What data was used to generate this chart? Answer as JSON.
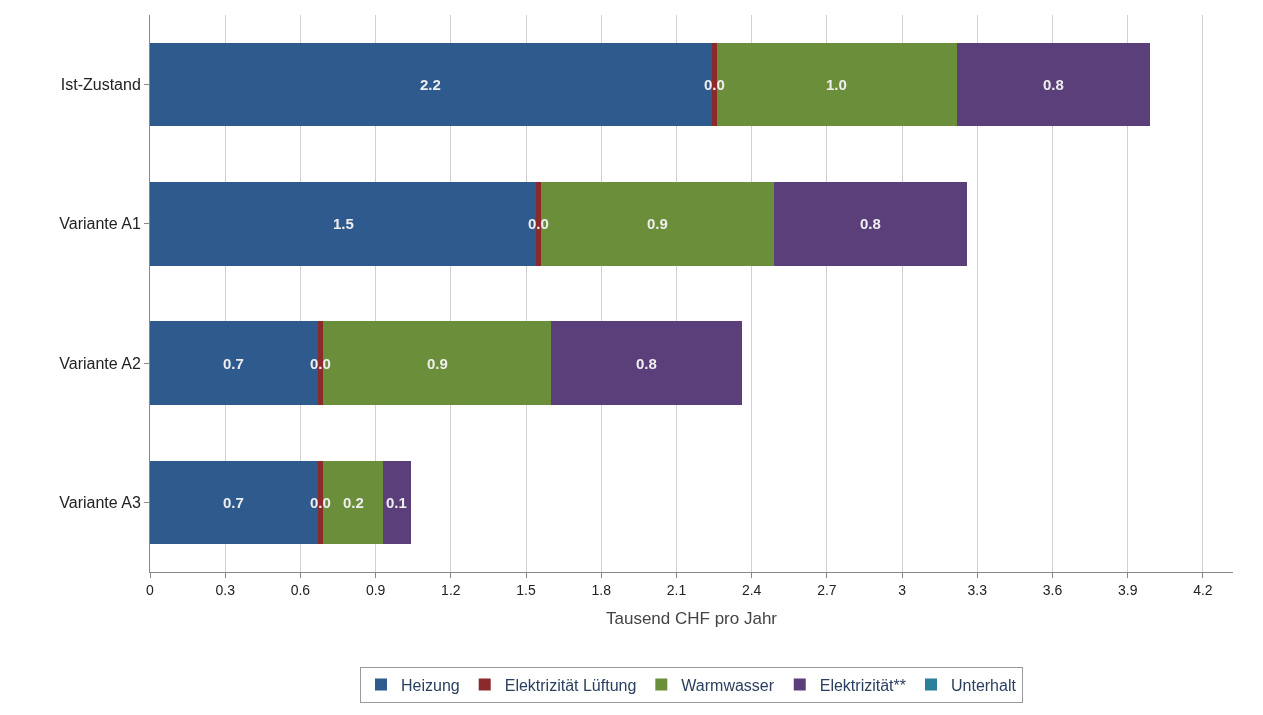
{
  "chart_data": {
    "type": "bar",
    "orientation": "horizontal",
    "stacked": true,
    "xlabel": "Tausend CHF pro Jahr",
    "categories": [
      "Ist-Zustand",
      "Variante A1",
      "Variante A2",
      "Variante A3"
    ],
    "series": [
      {
        "name": "Heizung",
        "color": "#2e5a8e",
        "values": [
          2.24,
          1.54,
          0.67,
          0.67
        ],
        "value_labels": [
          "2.2",
          "1.5",
          "0.7",
          "0.7"
        ]
      },
      {
        "name": "Elektrizität Lüftung",
        "color": "#8b2a2a",
        "values": [
          0.02,
          0.02,
          0.02,
          0.02
        ],
        "value_labels": [
          "0.0",
          "0.0",
          "0.0",
          "0.0"
        ]
      },
      {
        "name": "Warmwasser",
        "color": "#6b8e3a",
        "values": [
          0.96,
          0.93,
          0.91,
          0.24
        ],
        "value_labels": [
          "1.0",
          "0.9",
          "0.9",
          "0.2"
        ]
      },
      {
        "name": "Elektrizität**",
        "color": "#5a3f7a",
        "values": [
          0.77,
          0.77,
          0.76,
          0.11
        ],
        "value_labels": [
          "0.8",
          "0.8",
          "0.8",
          "0.1"
        ]
      },
      {
        "name": "Unterhalt",
        "color": "#2a7f9a",
        "values": [
          0,
          0,
          0,
          0
        ],
        "value_labels": [
          null,
          null,
          null,
          null
        ]
      }
    ],
    "xlim": [
      0,
      4.32
    ],
    "xticks": [
      0,
      0.3,
      0.6,
      0.9,
      1.2,
      1.5,
      1.8,
      2.1,
      2.4,
      2.7,
      3,
      3.3,
      3.6,
      3.9,
      4.2
    ],
    "grid": "x",
    "legend": "bottom"
  }
}
